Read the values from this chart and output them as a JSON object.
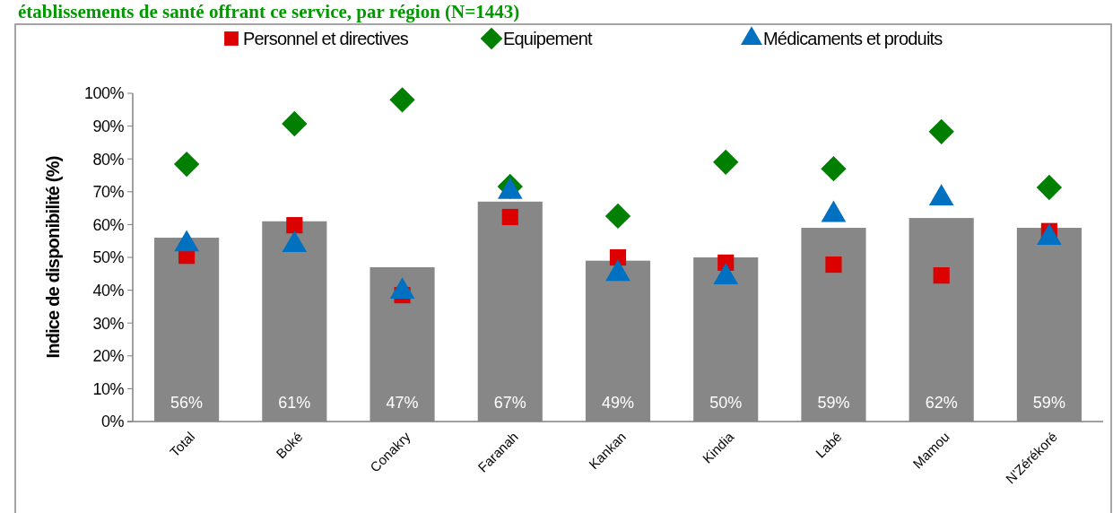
{
  "chart_data": {
    "type": "bar",
    "title": "établissements de santé offrant ce service, par région (N=1443)",
    "ylabel": "Indice de disponibilité (%)",
    "categories": [
      "Total",
      "Boké",
      "Conakry",
      "Faranah",
      "Kankan",
      "Kindia",
      "Labé",
      "Mamou",
      "N'Zérékoré"
    ],
    "series": [
      {
        "color": "#878787",
        "values": [
          56,
          61,
          47,
          67,
          49,
          50,
          59,
          62,
          59
        ],
        "value_labels": [
          "56%",
          "61%",
          "47%",
          "67%",
          "49%",
          "50%",
          "59%",
          "62%",
          "59%"
        ]
      },
      {
        "type": "scatter",
        "name": "Personnel et directives",
        "color": "#dd0000",
        "marker": "square",
        "values": [
          50.5,
          59.8,
          38.5,
          62.3,
          50,
          48.4,
          47.8,
          44.5,
          58
        ]
      },
      {
        "type": "scatter",
        "name": "Equipement",
        "color": "#007f00",
        "marker": "diamond",
        "values": [
          78.4,
          90.7,
          98,
          71.6,
          62.6,
          79,
          77,
          88.3,
          71.3
        ]
      },
      {
        "type": "scatter",
        "name": "Médicaments et produits",
        "color": "#0070c0",
        "marker": "triangle",
        "values": [
          54,
          53.8,
          39.6,
          70,
          45,
          44,
          63,
          68,
          56
        ]
      }
    ],
    "ylim": [
      0,
      100
    ],
    "yticks": [
      {
        "value": 0,
        "label": "0%"
      },
      {
        "value": 10,
        "label": "10%"
      },
      {
        "value": 20,
        "label": "20%"
      },
      {
        "value": 30,
        "label": "30%"
      },
      {
        "value": 40,
        "label": "40%"
      },
      {
        "value": 50,
        "label": "50%"
      },
      {
        "value": 60,
        "label": "60%"
      },
      {
        "value": 70,
        "label": "70%"
      },
      {
        "value": 80,
        "label": "80%"
      },
      {
        "value": 90,
        "label": "90%"
      },
      {
        "value": 100,
        "label": "100%"
      }
    ],
    "legend": "top",
    "grid": false
  }
}
